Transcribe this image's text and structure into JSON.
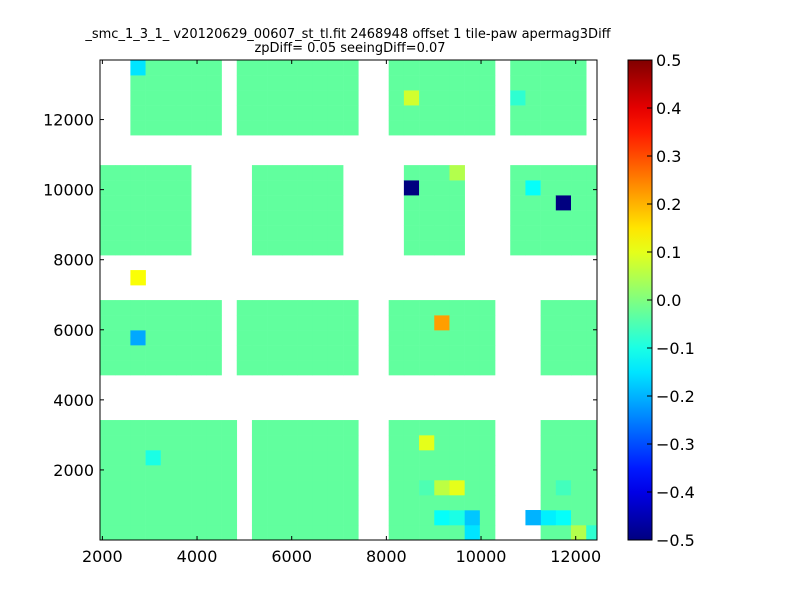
{
  "chart_data": {
    "type": "heatmap",
    "title": "_smc_1_3_1_ v20120629_00607_st_tl.fit 2468948 offset 1 tile-paw apermag3Diff",
    "subtitle": "zpDiff= 0.05 seeingDiff=0.07",
    "xlabel": "",
    "ylabel": "",
    "xlim": [
      1950,
      12450
    ],
    "ylim": [
      0,
      13700
    ],
    "x_ticks": [
      2000,
      4000,
      6000,
      8000,
      10000,
      12000
    ],
    "x_tick_labels": [
      "2000",
      "4000",
      "6000",
      "8000",
      "10000",
      "12000"
    ],
    "y_ticks": [
      2000,
      4000,
      6000,
      8000,
      10000,
      12000
    ],
    "y_tick_labels": [
      "2000",
      "4000",
      "6000",
      "8000",
      "10000",
      "12000"
    ],
    "colorbar": {
      "colormap": "jet",
      "range": [
        -0.5,
        0.5
      ],
      "ticks": [
        -0.5,
        -0.4,
        -0.3,
        -0.2,
        -0.1,
        0.0,
        0.1,
        0.2,
        0.3,
        0.4,
        0.5
      ],
      "tick_labels": [
        "−0.5",
        "−0.4",
        "−0.3",
        "−0.2",
        "−0.1",
        "0.0",
        "0.1",
        "0.2",
        "0.3",
        "0.4",
        "0.5"
      ]
    },
    "grid": false,
    "bins": {
      "x0": 1950,
      "dx": 321,
      "y0": 0,
      "dy": 428,
      "nx": 33,
      "ny": 32
    },
    "default_value": -0.03,
    "blocks": [
      {
        "cols": [
          1,
          9
        ],
        "rows": [
          1,
          8
        ]
      },
      {
        "cols": [
          11,
          17
        ],
        "rows": [
          1,
          8
        ]
      },
      {
        "cols": [
          20,
          26
        ],
        "rows": [
          1,
          8
        ]
      },
      {
        "cols": [
          30,
          33
        ],
        "rows": [
          1,
          8
        ]
      },
      {
        "cols": [
          1,
          8
        ],
        "rows": [
          12,
          16
        ]
      },
      {
        "cols": [
          10,
          17
        ],
        "rows": [
          12,
          16
        ]
      },
      {
        "cols": [
          20,
          26
        ],
        "rows": [
          12,
          16
        ]
      },
      {
        "cols": [
          30,
          33
        ],
        "rows": [
          12,
          16
        ]
      },
      {
        "cols": [
          1,
          6
        ],
        "rows": [
          20,
          25
        ]
      },
      {
        "cols": [
          11,
          16
        ],
        "rows": [
          20,
          25
        ]
      },
      {
        "cols": [
          21,
          24
        ],
        "rows": [
          20,
          25
        ]
      },
      {
        "cols": [
          28,
          33
        ],
        "rows": [
          20,
          25
        ]
      },
      {
        "cols": [
          3,
          8
        ],
        "rows": [
          28,
          32
        ]
      },
      {
        "cols": [
          10,
          17
        ],
        "rows": [
          28,
          32
        ]
      },
      {
        "cols": [
          20,
          26
        ],
        "rows": [
          28,
          32
        ]
      },
      {
        "cols": [
          28,
          32
        ],
        "rows": [
          28,
          32
        ]
      }
    ],
    "outliers": [
      {
        "col": 3,
        "row": 32,
        "value": -0.15
      },
      {
        "col": 3,
        "row": 14,
        "value": -0.21
      },
      {
        "col": 3,
        "row": 18,
        "value": 0.12
      },
      {
        "col": 4,
        "row": 6,
        "value": -0.1
      },
      {
        "col": 21,
        "row": 30,
        "value": 0.08
      },
      {
        "col": 21,
        "row": 24,
        "value": -0.5
      },
      {
        "col": 22,
        "row": 7,
        "value": 0.1
      },
      {
        "col": 22,
        "row": 4,
        "value": -0.05
      },
      {
        "col": 23,
        "row": 15,
        "value": 0.22
      },
      {
        "col": 23,
        "row": 2,
        "value": -0.12
      },
      {
        "col": 23,
        "row": 4,
        "value": 0.06
      },
      {
        "col": 24,
        "row": 2,
        "value": -0.1
      },
      {
        "col": 24,
        "row": 4,
        "value": 0.1
      },
      {
        "col": 24,
        "row": 25,
        "value": 0.05
      },
      {
        "col": 25,
        "row": 2,
        "value": -0.18
      },
      {
        "col": 25,
        "row": 1,
        "value": -0.15
      },
      {
        "col": 29,
        "row": 2,
        "value": -0.2
      },
      {
        "col": 29,
        "row": 24,
        "value": -0.12
      },
      {
        "col": 30,
        "row": 2,
        "value": -0.14
      },
      {
        "col": 31,
        "row": 2,
        "value": -0.12
      },
      {
        "col": 31,
        "row": 4,
        "value": -0.06
      },
      {
        "col": 31,
        "row": 23,
        "value": -0.5
      },
      {
        "col": 32,
        "row": 1,
        "value": 0.05
      },
      {
        "col": 33,
        "row": 1,
        "value": -0.08
      },
      {
        "col": 28,
        "row": 30,
        "value": -0.08
      }
    ]
  }
}
